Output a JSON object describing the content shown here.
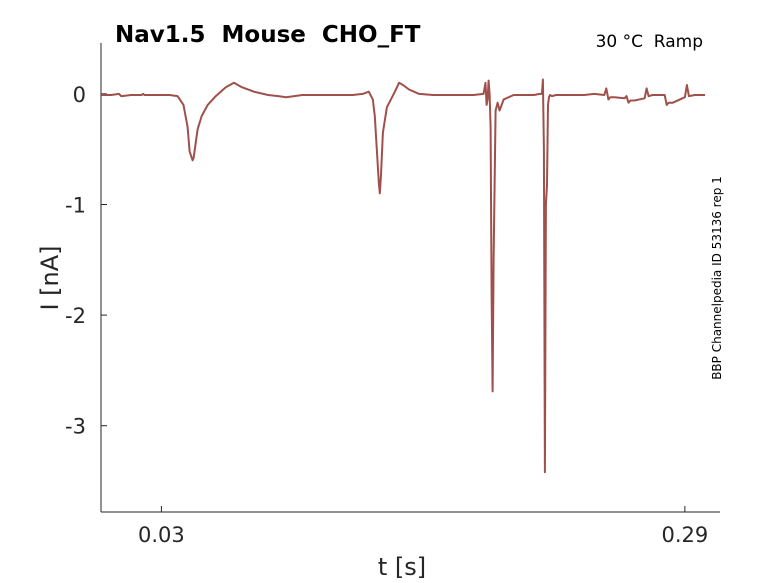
{
  "chart_data": {
    "type": "line",
    "title": "Nav1.5  Mouse  CHO_FT",
    "condition": "30 °C  Ramp",
    "side_label": "BBP Channelpedia ID 53136 rep 1",
    "xlabel": "t [s]",
    "ylabel": "I [nA]",
    "xlim": [
      0.0,
      0.3
    ],
    "ylim": [
      -3.78,
      0.46
    ],
    "x_ticks": [
      0.03,
      0.29
    ],
    "x_tick_labels": [
      "0.03",
      "0.29"
    ],
    "y_ticks": [
      0,
      -1,
      -2,
      -3
    ],
    "y_tick_labels": [
      "0",
      "-1",
      "-2",
      "-3"
    ],
    "grid": false,
    "series_color": "#a0504b",
    "series": [
      {
        "x": [
          0.0,
          0.005,
          0.009,
          0.01,
          0.0105,
          0.015,
          0.02,
          0.021,
          0.0215,
          0.03,
          0.034,
          0.038,
          0.041,
          0.043,
          0.044,
          0.0455,
          0.046,
          0.047,
          0.048,
          0.05,
          0.053,
          0.057,
          0.062,
          0.066,
          0.07,
          0.076,
          0.083,
          0.088,
          0.092,
          0.1,
          0.11,
          0.12,
          0.125,
          0.13,
          0.133,
          0.135,
          0.136,
          0.137,
          0.138,
          0.1385,
          0.139,
          0.14,
          0.142,
          0.146,
          0.148,
          0.15,
          0.153,
          0.158,
          0.165,
          0.175,
          0.185,
          0.19,
          0.191,
          0.1915,
          0.192,
          0.1925,
          0.193,
          0.1935,
          0.194,
          0.1945,
          0.195,
          0.196,
          0.197,
          0.198,
          0.2,
          0.205,
          0.21,
          0.215,
          0.218,
          0.219,
          0.2195,
          0.22,
          0.2205,
          0.221,
          0.2215,
          0.222,
          0.2225,
          0.223,
          0.224,
          0.226,
          0.23,
          0.235,
          0.24,
          0.245,
          0.25,
          0.251,
          0.252,
          0.253,
          0.255,
          0.26,
          0.261,
          0.262,
          0.263,
          0.265,
          0.27,
          0.271,
          0.272,
          0.274,
          0.28,
          0.281,
          0.282,
          0.284,
          0.29,
          0.291,
          0.292,
          0.295,
          0.3
        ],
        "values": [
          -0.01,
          -0.01,
          0.0,
          -0.02,
          -0.02,
          -0.01,
          -0.01,
          0.0,
          -0.01,
          -0.01,
          -0.01,
          -0.02,
          -0.1,
          -0.3,
          -0.52,
          -0.6,
          -0.58,
          -0.45,
          -0.32,
          -0.2,
          -0.1,
          -0.02,
          0.06,
          0.1,
          0.06,
          0.02,
          -0.01,
          -0.02,
          -0.03,
          -0.01,
          -0.01,
          -0.01,
          -0.01,
          0.0,
          0.02,
          -0.05,
          -0.2,
          -0.5,
          -0.8,
          -0.9,
          -0.75,
          -0.35,
          -0.12,
          0.02,
          0.1,
          0.08,
          0.04,
          0.0,
          -0.01,
          -0.01,
          -0.01,
          0.0,
          0.1,
          -0.1,
          -0.05,
          0.12,
          0.0,
          -0.3,
          -1.8,
          -2.69,
          -1.5,
          -0.15,
          -0.08,
          -0.15,
          -0.05,
          -0.01,
          -0.01,
          -0.01,
          0.0,
          0.0,
          0.13,
          -0.5,
          -3.42,
          -1.0,
          -0.82,
          -0.1,
          -0.03,
          -0.01,
          -0.02,
          -0.01,
          -0.01,
          -0.01,
          -0.01,
          0.0,
          -0.01,
          0.05,
          -0.05,
          -0.03,
          -0.03,
          -0.04,
          -0.02,
          -0.08,
          -0.06,
          -0.06,
          -0.04,
          0.05,
          -0.02,
          -0.01,
          -0.01,
          -0.1,
          -0.08,
          -0.08,
          -0.03,
          0.08,
          -0.02,
          -0.01,
          -0.01
        ]
      }
    ]
  }
}
